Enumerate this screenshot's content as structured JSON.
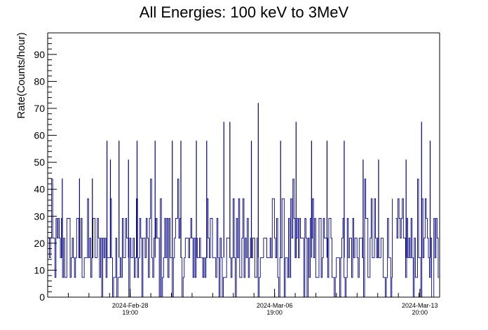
{
  "chart_data": {
    "type": "line",
    "title": "All Energies:  100 keV to 3MeV",
    "ylabel": "Rate(Counts/hour)",
    "xlabel": "",
    "ylim": [
      0,
      98
    ],
    "yticks": [
      {
        "value": 0,
        "label": "0"
      },
      {
        "value": 10,
        "label": "10"
      },
      {
        "value": 20,
        "label": "20"
      },
      {
        "value": 30,
        "label": "30"
      },
      {
        "value": 40,
        "label": "40"
      },
      {
        "value": 50,
        "label": "50"
      },
      {
        "value": 60,
        "label": "60"
      },
      {
        "value": 70,
        "label": "70"
      },
      {
        "value": 80,
        "label": "80"
      },
      {
        "value": 90,
        "label": "90"
      }
    ],
    "xrange": [
      "2024-02-24T19:00",
      "2024-03-14T19:00"
    ],
    "xticks": [
      {
        "value": "2024-02-28T19:00",
        "date": "2024-Feb-28",
        "time": "19:00"
      },
      {
        "value": "2024-03-06T19:00",
        "date": "2024-Mar-06",
        "time": "19:00"
      },
      {
        "value": "2024-03-13T20:00",
        "date": "2024-Mar-13",
        "time": "20:00"
      }
    ],
    "data_gap": [
      "2024-03-12T12:00",
      "2024-03-12T16:00"
    ],
    "grid": false,
    "legend": "none",
    "colors": {
      "series": "#000080",
      "axis": "#000000"
    },
    "series": [
      {
        "values": [
          {
            "x": "2024-02-25T12:00",
            "y": 44
          },
          {
            "x": "2024-02-26T08:00",
            "y": 44
          },
          {
            "x": "2024-02-26T23:00",
            "y": 44
          },
          {
            "x": "2024-02-27T16:00",
            "y": 58
          },
          {
            "x": "2024-02-27T20:00",
            "y": 51
          },
          {
            "x": "2024-02-28T06:00",
            "y": 58
          },
          {
            "x": "2024-02-28T17:00",
            "y": 51
          },
          {
            "x": "2024-02-29T03:00",
            "y": 58
          },
          {
            "x": "2024-03-01T00:00",
            "y": 58
          },
          {
            "x": "2024-03-01T20:00",
            "y": 58
          },
          {
            "x": "2024-03-02T06:00",
            "y": 58
          },
          {
            "x": "2024-03-03T00:00",
            "y": 58
          },
          {
            "x": "2024-03-03T12:00",
            "y": 58
          },
          {
            "x": "2024-03-04T08:00",
            "y": 65
          },
          {
            "x": "2024-03-04T15:00",
            "y": 65
          },
          {
            "x": "2024-03-05T16:00",
            "y": 58
          },
          {
            "x": "2024-03-06T00:00",
            "y": 72
          },
          {
            "x": "2024-03-07T02:00",
            "y": 58
          },
          {
            "x": "2024-03-07T20:00",
            "y": 65
          },
          {
            "x": "2024-03-08T14:00",
            "y": 58
          },
          {
            "x": "2024-03-09T08:00",
            "y": 58
          },
          {
            "x": "2024-03-10T04:00",
            "y": 58
          },
          {
            "x": "2024-03-11T02:00",
            "y": 51
          },
          {
            "x": "2024-03-11T20:00",
            "y": 51
          },
          {
            "x": "2024-03-13T04:00",
            "y": 51
          },
          {
            "x": "2024-03-13T22:00",
            "y": 65
          },
          {
            "x": "2024-03-14T08:00",
            "y": 58
          }
        ]
      }
    ]
  }
}
